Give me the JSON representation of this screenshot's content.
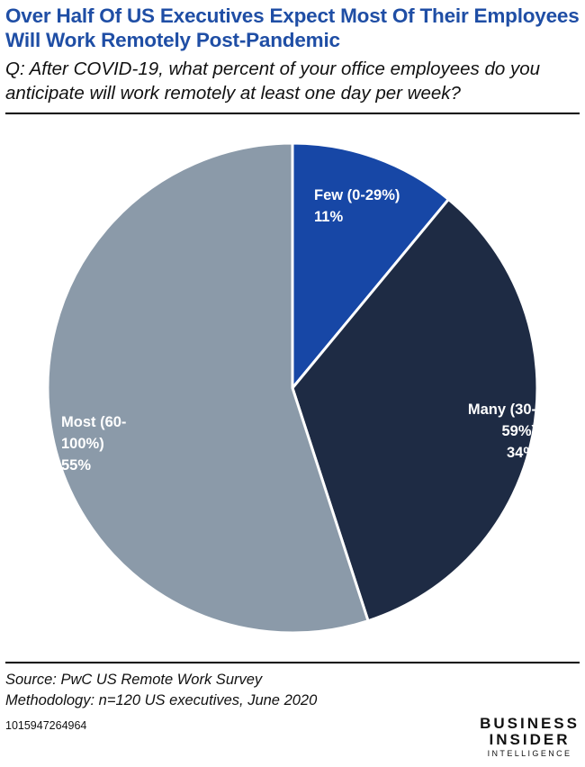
{
  "header": {
    "title": "Over Half Of US Executives Expect Most Of Their Employees Will Work Remotely Post-Pandemic",
    "subtitle": "Q: After COVID-19, what percent of your office employees do you anticipate will work remotely at least one day per week?"
  },
  "chart_data": {
    "type": "pie",
    "title": "Over Half Of US Executives Expect Most Of Their Employees Will Work Remotely Post-Pandemic",
    "subtitle": "Q: After COVID-19, what percent of your office employees do you anticipate will work remotely at least one day per week?",
    "start": "12 o'clock",
    "direction": "clockwise",
    "slices": [
      {
        "label_lines": [
          "Few (0-29%)"
        ],
        "value": 11,
        "value_label": "11%",
        "color": "#1747a6"
      },
      {
        "label_lines": [
          "Many (30-",
          "59%)"
        ],
        "value": 34,
        "value_label": "34%",
        "color": "#1e2b44"
      },
      {
        "label_lines": [
          "Most (60-",
          "100%)"
        ],
        "value": 55,
        "value_label": "55%",
        "color": "#8b9aa9"
      }
    ]
  },
  "footer": {
    "source": "Source: PwC US Remote Work Survey",
    "methodology": "Methodology: n=120 US executives, June 2020",
    "chart_id": "1015947264964",
    "logo": {
      "line1": "BUSINESS",
      "line2": "INSIDER",
      "line3": "INTELLIGENCE"
    }
  }
}
